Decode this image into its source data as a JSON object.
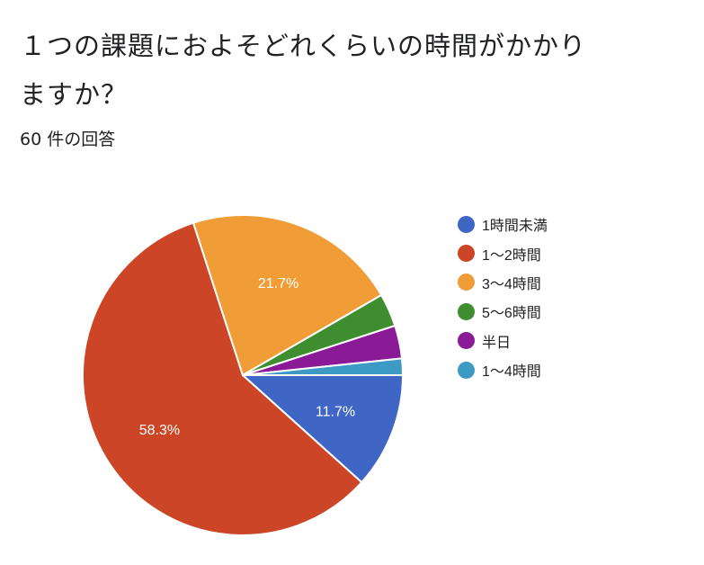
{
  "header": {
    "title": "１つの課題におよそどれくらいの時間がかかりますか？",
    "response_count": "60 件の回答"
  },
  "chart_data": {
    "type": "pie",
    "title": "１つの課題におよそどれくらいの時間がかかりますか？",
    "subtitle": "60 件の回答",
    "total": 60,
    "categories": [
      "1時間未満",
      "1〜2時間",
      "3〜4時間",
      "5〜6時間",
      "半日",
      "1〜4時間"
    ],
    "values": [
      7,
      35,
      13,
      2,
      2,
      1
    ],
    "percentages": [
      11.7,
      58.3,
      21.7,
      3.3,
      3.3,
      1.7
    ],
    "colors": [
      "#3f65c5",
      "#cc4526",
      "#f09d38",
      "#3e8e30",
      "#8b1a96",
      "#3d9ac4"
    ],
    "data_labels": [
      "11.7%",
      "58.3%",
      "21.7%",
      "",
      "",
      ""
    ],
    "legend_position": "right",
    "start_angle": "3 o'clock, clockwise"
  },
  "legend": {
    "items": [
      {
        "label": "1時間未満",
        "color": "#3f65c5"
      },
      {
        "label": "1〜2時間",
        "color": "#cc4526"
      },
      {
        "label": "3〜4時間",
        "color": "#f09d38"
      },
      {
        "label": "5〜6時間",
        "color": "#3e8e30"
      },
      {
        "label": "半日",
        "color": "#8b1a96"
      },
      {
        "label": "1〜4時間",
        "color": "#3d9ac4"
      }
    ]
  }
}
